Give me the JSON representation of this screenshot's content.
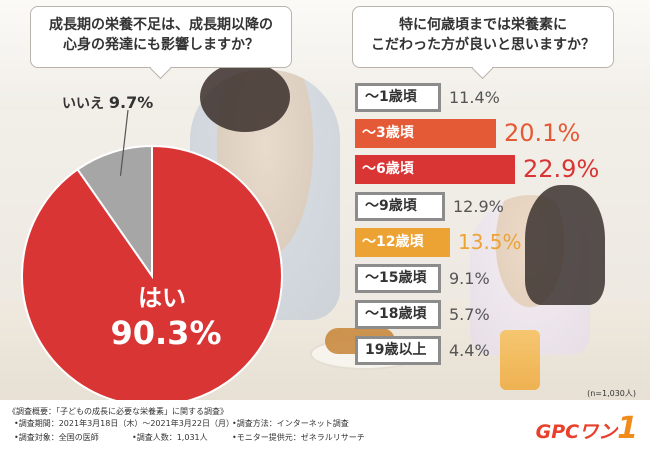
{
  "question1": {
    "line1": "成長期の栄養不足は、成長期以降の",
    "line2": "心身の発達にも影響しますか？"
  },
  "question2": {
    "line1": "特に何歳頃までは栄養素に",
    "line2": "こだわった方が良いと思いますか？"
  },
  "colors": {
    "red": "#d93535",
    "orange": "#e55a36",
    "yellow": "#eda234",
    "gray": "#9e9e9e",
    "text": "#333333"
  },
  "chart_data": [
    {
      "type": "pie",
      "slices": [
        {
          "label": "はい",
          "value": 90.3,
          "value_text": "90.3%",
          "color": "#d93535"
        },
        {
          "label": "いいえ",
          "value": 9.7,
          "value_text": "9.7%",
          "color": "#a6a6a6"
        }
      ]
    },
    {
      "type": "bar",
      "orientation": "horizontal",
      "categories": [
        "〜1歳頃",
        "〜3歳頃",
        "〜6歳頃",
        "〜9歳頃",
        "〜12歳頃",
        "〜15歳頃",
        "〜18歳頃",
        "19歳以上"
      ],
      "values": [
        11.4,
        20.1,
        22.9,
        12.9,
        13.5,
        9.1,
        5.7,
        4.4
      ],
      "value_texts": [
        "11.4%",
        "20.1%",
        "22.9%",
        "12.9%",
        "13.5%",
        "9.1%",
        "5.7%",
        "4.4%"
      ],
      "highlight": [
        "plain",
        "orange",
        "red",
        "plain",
        "yellow",
        "plain",
        "plain",
        "plain"
      ]
    }
  ],
  "sample_note": "(n=1,030人)",
  "footer": {
    "title": "《調査概要：「子どもの成長に必要な栄養素」に関する調査》",
    "items": [
      "•調査期間：2021年3月18日（木）〜2021年3月22日（月）",
      "•調査方法：インターネット調査",
      "•調査対象：全国の医師",
      "•調査人数：1,031人",
      "•モニター提供元：ゼネラルリサーチ"
    ]
  },
  "logo": {
    "text": "GPCワン",
    "one": "1"
  }
}
